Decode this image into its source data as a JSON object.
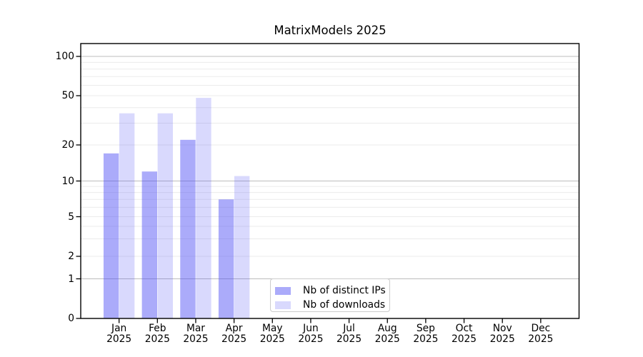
{
  "figure": {
    "title": "MatrixModels 2025"
  },
  "chart_data": {
    "type": "bar",
    "title": "MatrixModels 2025",
    "x_categories": [
      "Jan",
      "Feb",
      "Mar",
      "Apr",
      "May",
      "Jun",
      "Jul",
      "Aug",
      "Sep",
      "Oct",
      "Nov",
      "Dec"
    ],
    "x_year": "2025",
    "series": [
      {
        "name": "Nb of distinct IPs",
        "values": [
          17,
          12,
          22,
          7,
          0,
          0,
          0,
          0,
          0,
          0,
          0,
          0
        ],
        "color": "#5050F57A"
      },
      {
        "name": "Nb of downloads",
        "values": [
          36,
          36,
          48,
          11,
          0,
          0,
          0,
          0,
          0,
          0,
          0,
          0
        ],
        "color": "#5050F537"
      }
    ],
    "y_ticks": [
      0,
      1,
      2,
      5,
      10,
      20,
      50,
      100
    ],
    "y_scale": "symlog",
    "ylim": [
      0,
      127
    ],
    "grid": "horizontal log major+minor",
    "legend_position": "lower center-left inside plot"
  },
  "legend": {
    "items": [
      {
        "label": "Nb of distinct IPs"
      },
      {
        "label": "Nb of downloads"
      }
    ]
  },
  "colors": {
    "bar_ips": "#5050F57A",
    "bar_downloads": "#5050F537",
    "grid_major": "#BDBDBD",
    "grid_minor": "#EBEBEB",
    "spine": "#000000",
    "tick": "#000000",
    "text": "#000000",
    "legend_border": "#CCCCCC",
    "legend_bg": "#FFFFFF",
    "background": "#FFFFFF"
  }
}
